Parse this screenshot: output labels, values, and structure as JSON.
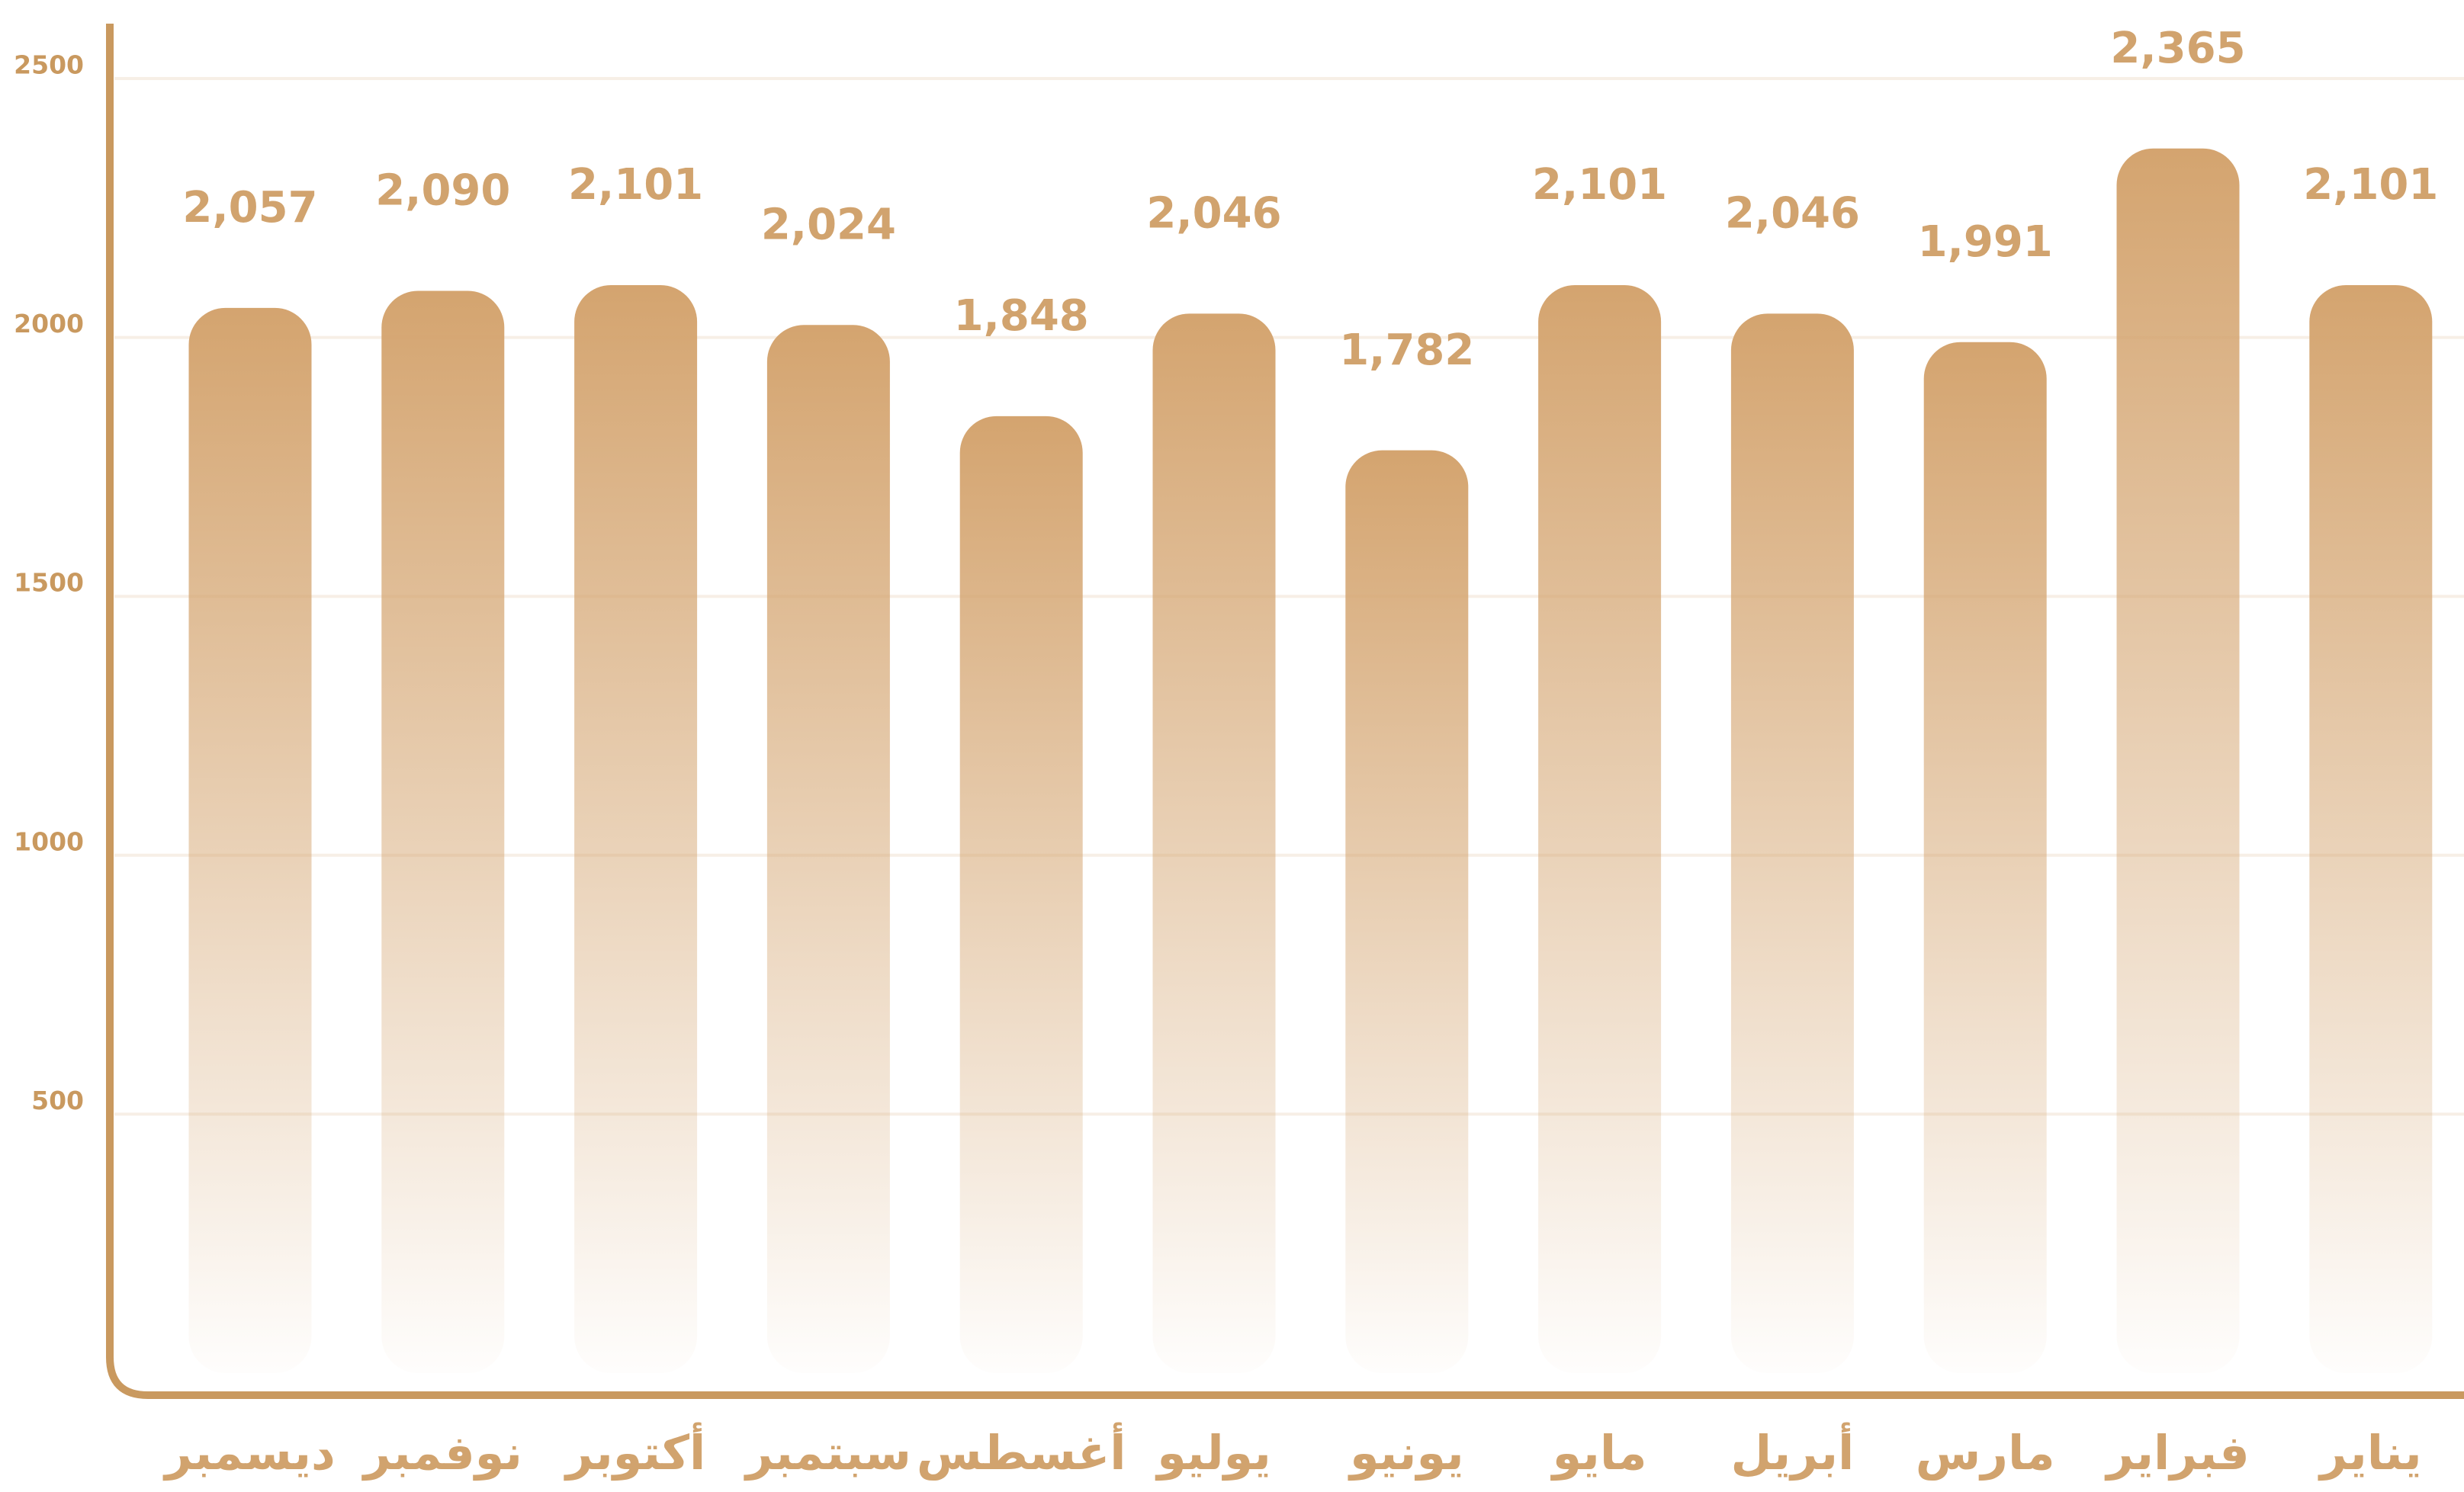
{
  "chart_data": {
    "type": "bar",
    "categories": [
      "ديسمبر",
      "نوفمبر",
      "أكتوبر",
      "سبتمبر",
      "أغسطس",
      "يوليو",
      "يونيو",
      "مايو",
      "أبريل",
      "مارس",
      "فبراير",
      "يناير"
    ],
    "values": [
      2057,
      2090,
      2101,
      2024,
      1848,
      2046,
      1782,
      2101,
      2046,
      1991,
      2365,
      2101
    ],
    "value_labels": [
      "2,057",
      "2,090",
      "2,101",
      "2,024",
      "1,848",
      "2,046",
      "1,782",
      "2,101",
      "2,046",
      "1,991",
      "2,365",
      "2,101"
    ],
    "color": "#d4a46f",
    "ylim": [
      0,
      2500
    ],
    "yticks": [
      500,
      1000,
      1500,
      2000,
      2500
    ],
    "grid": true
  }
}
